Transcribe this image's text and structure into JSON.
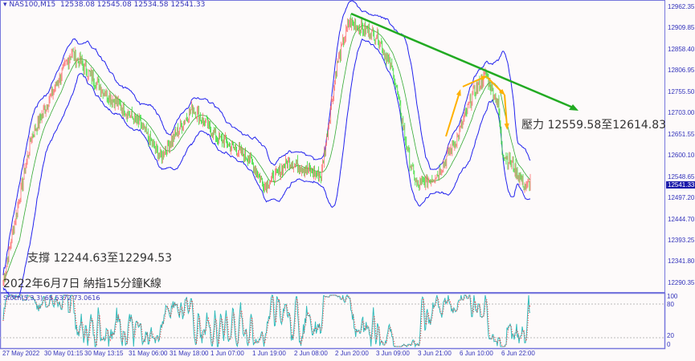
{
  "header": {
    "symbol": "NAS100,M15",
    "ohlc": "12538.08 12545.08 12534.58 12541.33"
  },
  "stoch_label": "Stoch(5,3,3) 65.5372 73.0616",
  "annotations": {
    "resistance": "壓力 12559.58至12614.83",
    "support": "支撐 12244.63至12294.53",
    "title": "2022年6月7日 納指15分鐘K線"
  },
  "chart_data": {
    "type": "candlestick",
    "price_ticks": [
      "12962.35",
      "12909.85",
      "12858.40",
      "12806.95",
      "12755.50",
      "12703.00",
      "12651.55",
      "12600.10",
      "12548.65",
      "12497.20",
      "12444.70",
      "12393.25",
      "12341.80",
      "12290.35"
    ],
    "current_price": "12541.33",
    "stoch_ticks": [
      "100",
      "80",
      "20",
      "0"
    ],
    "time_ticks": [
      "27 May 2022",
      "30 May 01:15",
      "30 May 13:15",
      "31 May 06:00",
      "31 May 18:00",
      "1 Jun 07:00",
      "1 Jun 19:00",
      "2 Jun 08:00",
      "2 Jun 20:00",
      "3 Jun 09:00",
      "3 Jun 21:00",
      "6 Jun 10:00",
      "6 Jun 22:00"
    ],
    "price_path": [
      [
        0,
        12300
      ],
      [
        15,
        12450
      ],
      [
        35,
        12650
      ],
      [
        85,
        12855
      ],
      [
        125,
        12760
      ],
      [
        170,
        12680
      ],
      [
        195,
        12600
      ],
      [
        235,
        12720
      ],
      [
        265,
        12650
      ],
      [
        305,
        12600
      ],
      [
        325,
        12530
      ],
      [
        355,
        12590
      ],
      [
        395,
        12555
      ],
      [
        415,
        12825
      ],
      [
        430,
        12930
      ],
      [
        465,
        12895
      ],
      [
        485,
        12805
      ],
      [
        505,
        12590
      ],
      [
        515,
        12530
      ],
      [
        540,
        12560
      ],
      [
        565,
        12650
      ],
      [
        585,
        12760
      ],
      [
        600,
        12800
      ],
      [
        615,
        12730
      ],
      [
        620,
        12615
      ],
      [
        635,
        12575
      ],
      [
        650,
        12525
      ],
      [
        655,
        12541
      ]
    ],
    "colors": {
      "up": "#ff6e6e",
      "down": "#33dd33",
      "bands": "#2222ee",
      "trend": "#22aa22",
      "arrows": "#ffb000",
      "stoch_main": "#33bbbb",
      "stoch_signal": "#ee3333"
    }
  }
}
